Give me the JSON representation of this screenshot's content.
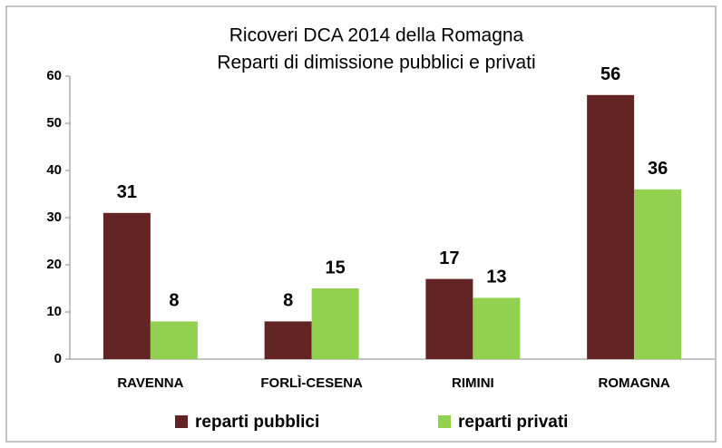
{
  "chart_data": {
    "type": "bar",
    "title": "Ricoveri DCA 2014 della Romagna",
    "subtitle": "Reparti di dimissione pubblici e privati",
    "categories": [
      "RAVENNA",
      "FORLÌ-CESENA",
      "RIMINI",
      "ROMAGNA"
    ],
    "series": [
      {
        "name": "reparti pubblici",
        "color": "#632523",
        "values": [
          31,
          8,
          17,
          56
        ]
      },
      {
        "name": "reparti privati",
        "color": "#92d050",
        "values": [
          8,
          15,
          13,
          36
        ]
      }
    ],
    "ylim": [
      0,
      60
    ],
    "yticks": [
      0,
      10,
      20,
      30,
      40,
      50,
      60
    ],
    "grid": false,
    "legend": "bottom"
  }
}
